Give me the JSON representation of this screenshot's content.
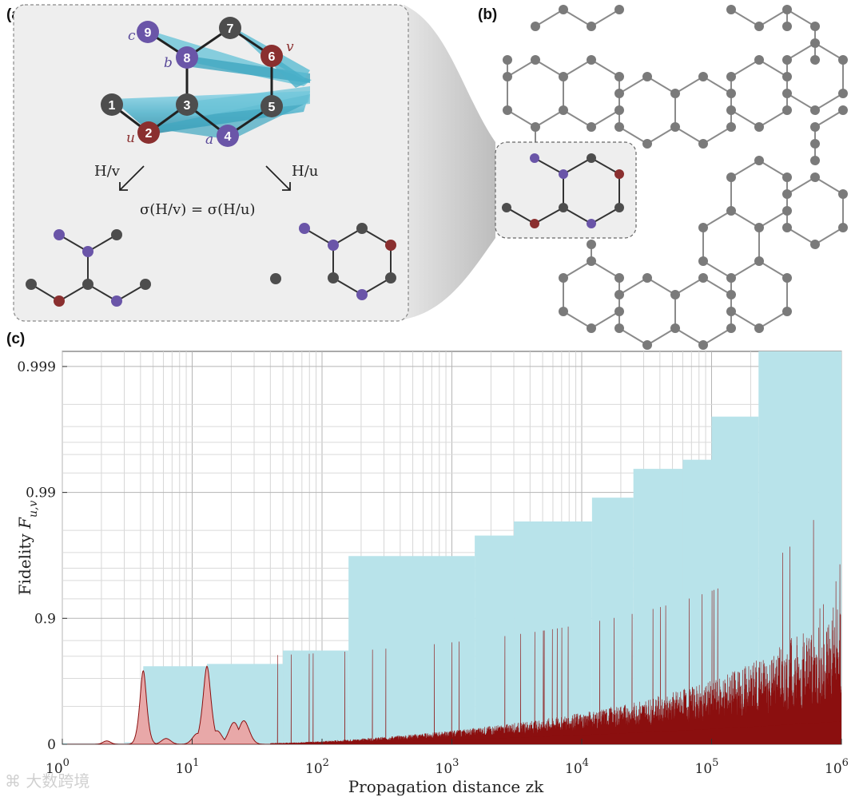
{
  "panels": {
    "a": "(a)",
    "b": "(b)",
    "c": "(c)"
  },
  "panel_a": {
    "nodes": [
      {
        "id": "1",
        "label": "1",
        "color": "#4a4a4a"
      },
      {
        "id": "2",
        "label": "2",
        "color": "#7d2a2a"
      },
      {
        "id": "3",
        "label": "3",
        "color": "#4a4a4a"
      },
      {
        "id": "4",
        "label": "4",
        "color": "#5a4a9a"
      },
      {
        "id": "5",
        "label": "5",
        "color": "#4a4a4a"
      },
      {
        "id": "6",
        "label": "6",
        "color": "#7d2a2a"
      },
      {
        "id": "7",
        "label": "7",
        "color": "#4a4a4a"
      },
      {
        "id": "8",
        "label": "8",
        "color": "#5a4a9a"
      },
      {
        "id": "9",
        "label": "9",
        "color": "#5a4a9a"
      }
    ],
    "tags": {
      "c": "c",
      "b": "b",
      "v": "v",
      "u": "u",
      "a": "a"
    },
    "arrow_left_label": "H/v",
    "arrow_right_label": "H/u",
    "equation": "σ(H/v) = σ(H/u)"
  },
  "colors": {
    "gray_node": "#4d4d4d",
    "purple_node": "#6a55a8",
    "red_node": "#8a2f2f",
    "lattice_node": "#7a7a7a",
    "cyan_fill": "#b8e3ea",
    "red_fill": "#8b0f0f",
    "pink_fill": "#e8a8a8",
    "panel_bg": "#eeeeee"
  },
  "chart_data": {
    "type": "area",
    "title": "",
    "xlabel": "Propagation distance zk",
    "ylabel": "Fidelity F_{u,v}",
    "x_scale": "log",
    "xlim": [
      1,
      1000000
    ],
    "x_ticks": [
      {
        "base": "10",
        "exp": "0"
      },
      {
        "base": "10",
        "exp": "1"
      },
      {
        "base": "10",
        "exp": "2"
      },
      {
        "base": "10",
        "exp": "3"
      },
      {
        "base": "10",
        "exp": "4"
      },
      {
        "base": "10",
        "exp": "5"
      },
      {
        "base": "10",
        "exp": "6"
      }
    ],
    "y_ticks": [
      "0.999",
      "0.99",
      "0.9",
      "0"
    ],
    "grid": true,
    "series": [
      {
        "kind": "running-max-envelope",
        "color": "#b8e3ea",
        "steps": [
          {
            "x_start": 1,
            "x_end": 3,
            "y": 0.02
          },
          {
            "x_start": 3,
            "x_end": 4.2,
            "y": 0.035
          },
          {
            "x_start": 4.2,
            "x_end": 13,
            "y": 0.76
          },
          {
            "x_start": 13,
            "x_end": 50,
            "y": 0.77
          },
          {
            "x_start": 50,
            "x_end": 160,
            "y": 0.82
          },
          {
            "x_start": 160,
            "x_end": 1500,
            "y": 0.968
          },
          {
            "x_start": 1500,
            "x_end": 3000,
            "y": 0.978
          },
          {
            "x_start": 3000,
            "x_end": 12000,
            "y": 0.983
          },
          {
            "x_start": 12000,
            "x_end": 25000,
            "y": 0.989
          },
          {
            "x_start": 25000,
            "x_end": 60000,
            "y": 0.9935
          },
          {
            "x_start": 60000,
            "x_end": 100000,
            "y": 0.9945
          },
          {
            "x_start": 100000,
            "x_end": 230000,
            "y": 0.9975
          },
          {
            "x_start": 230000,
            "x_end": 1000000,
            "y": 0.99935
          }
        ]
      },
      {
        "kind": "fidelity-oscillation",
        "color": "#8b0f0f",
        "early_peaks": [
          {
            "x": 2.2,
            "y": 0.06
          },
          {
            "x": 4.2,
            "y": 0.74
          },
          {
            "x": 6.3,
            "y": 0.1
          },
          {
            "x": 11,
            "y": 0.18
          },
          {
            "x": 13,
            "y": 0.76
          },
          {
            "x": 15.5,
            "y": 0.22
          },
          {
            "x": 21,
            "y": 0.33
          },
          {
            "x": 25,
            "y": 0.35
          }
        ]
      }
    ]
  }
}
